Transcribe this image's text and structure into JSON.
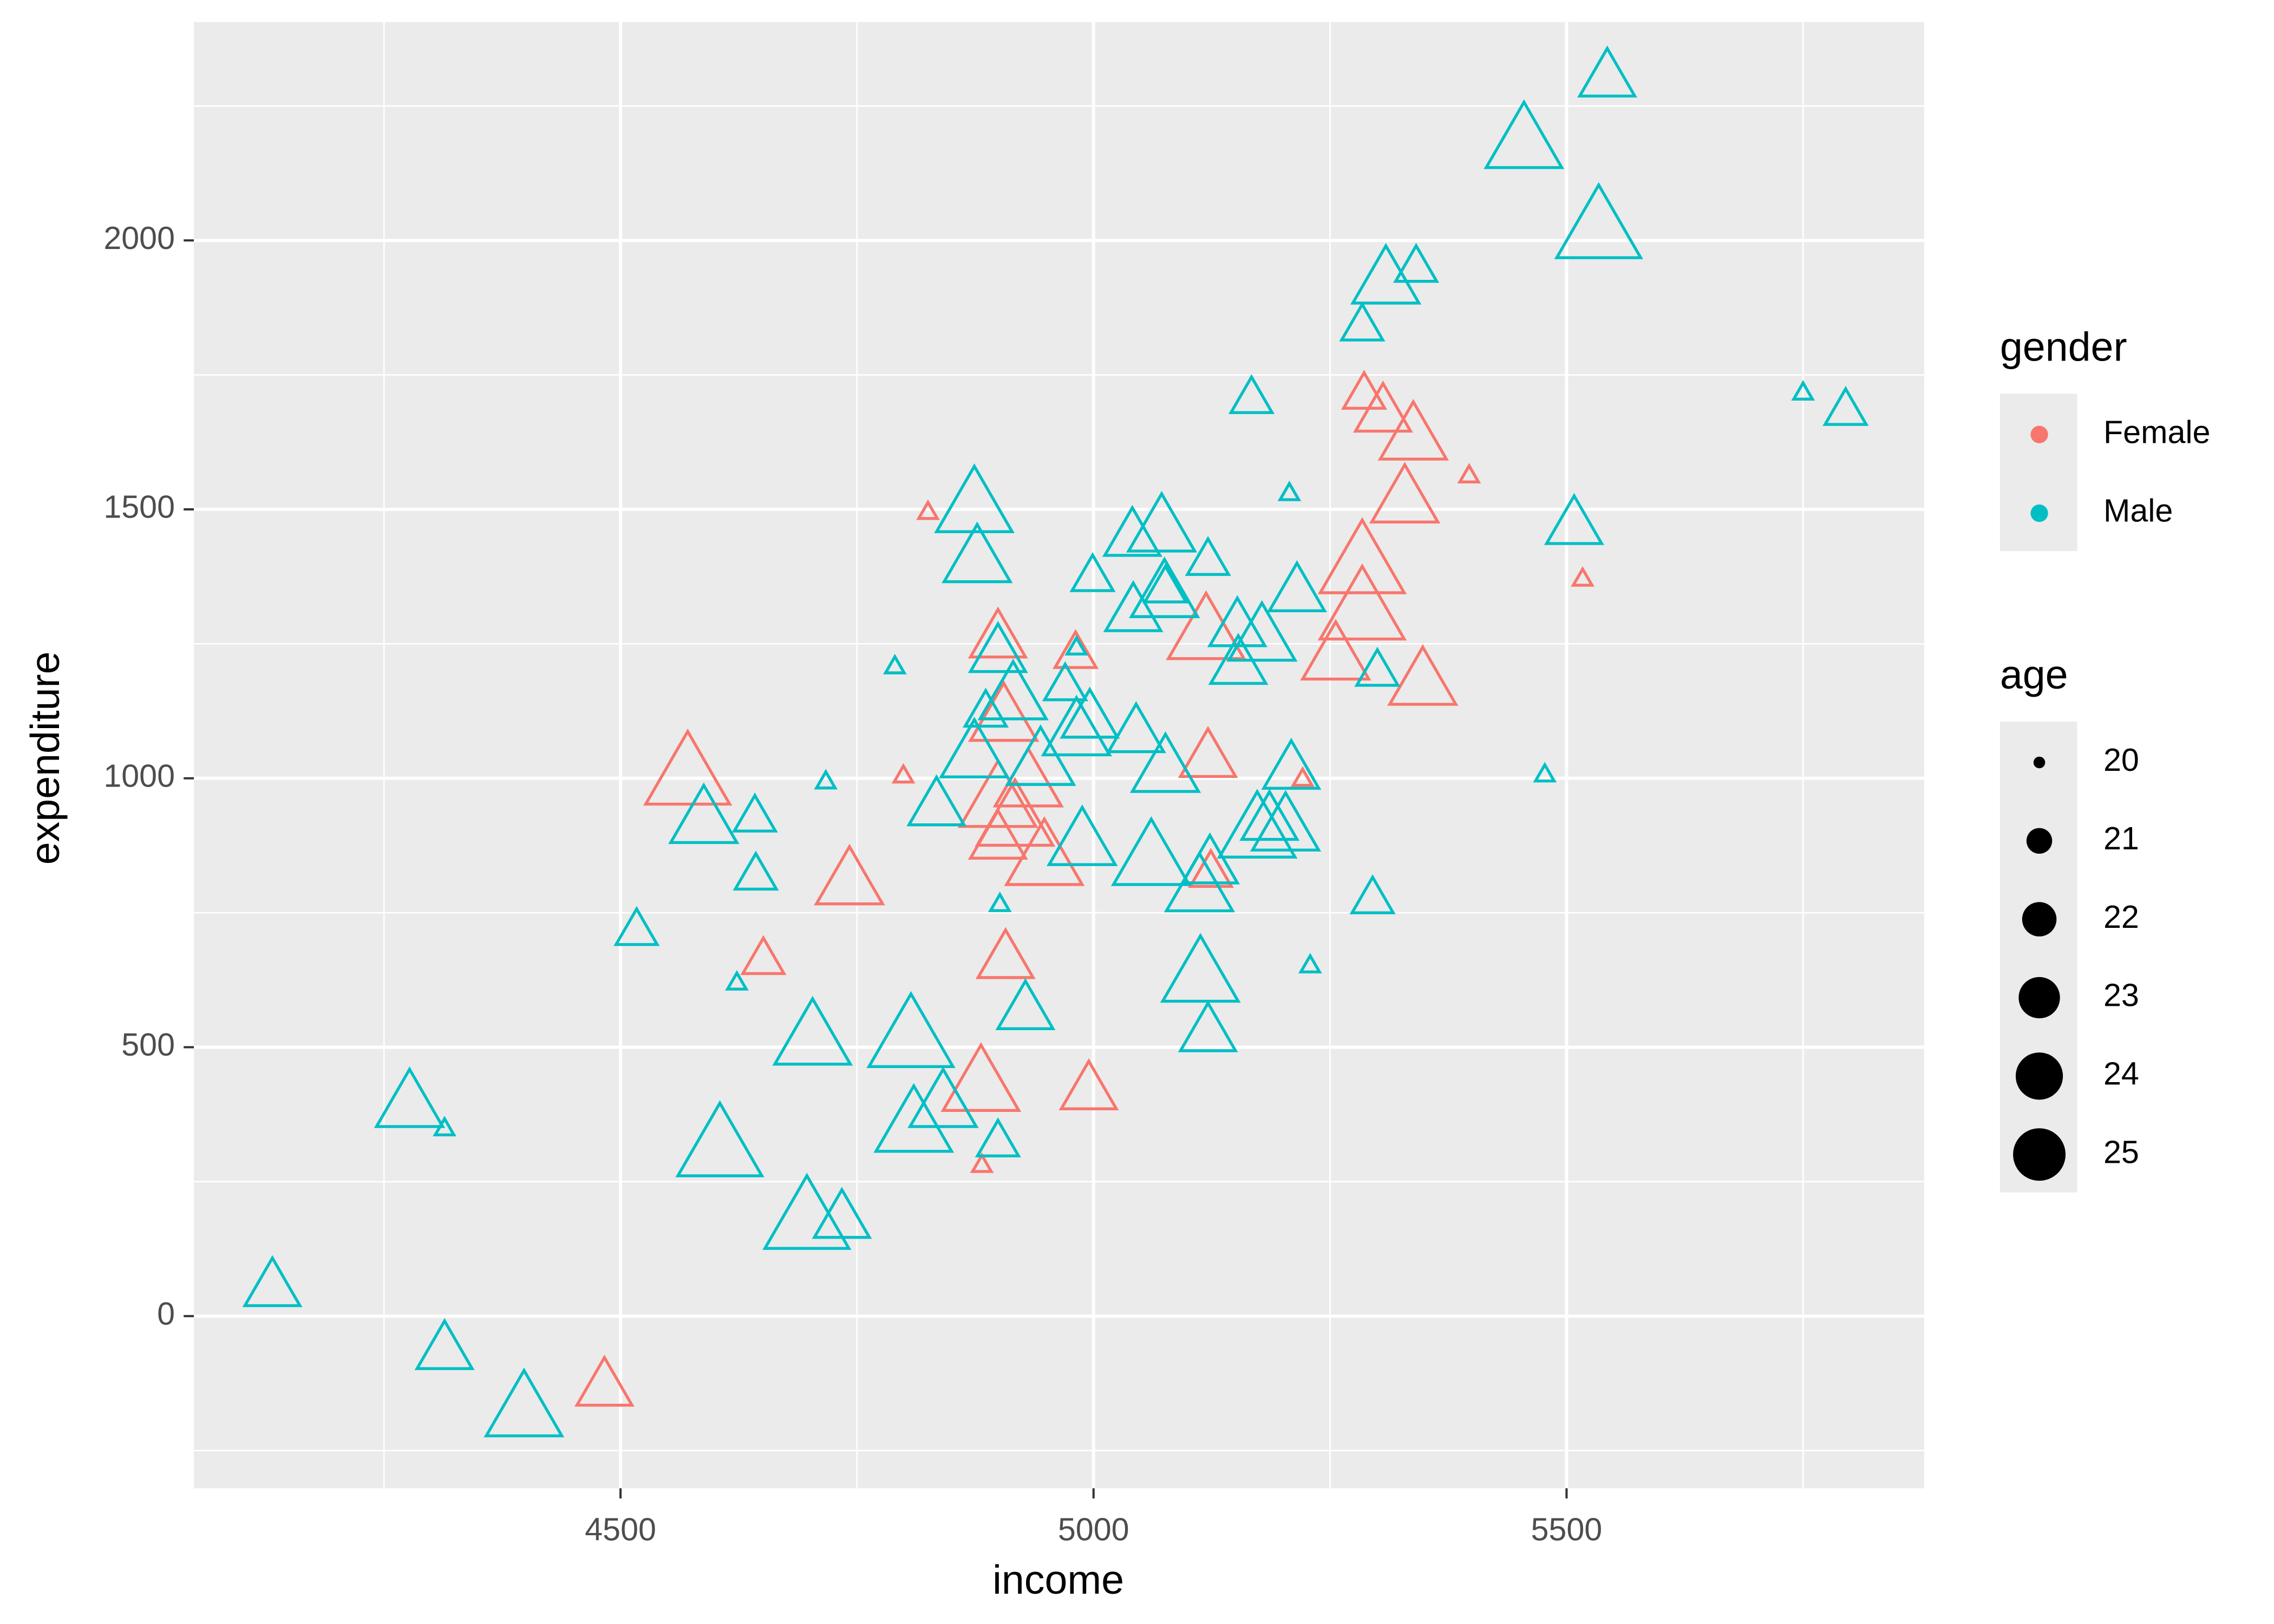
{
  "chart_data": {
    "type": "scatter",
    "x_label": "income",
    "y_label": "expenditure",
    "xlim": [
      4049,
      5878
    ],
    "ylim": [
      -320,
      2406
    ],
    "xticks": [
      4500,
      5000,
      5500
    ],
    "yticks": [
      0,
      500,
      1000,
      1500,
      2000
    ],
    "xminor": [
      4250,
      4750,
      5250,
      5750
    ],
    "yminor": [
      -250,
      250,
      750,
      1250,
      1750,
      2250
    ],
    "grid": true,
    "color_legend_title": "gender",
    "size_legend_title": "age",
    "size_legend_values": [
      20,
      21,
      22,
      23,
      24,
      25
    ],
    "size_range": [
      20,
      25
    ],
    "series": [
      {
        "name": "Female",
        "color": "#F8766D",
        "x": [
          5286,
          5306,
          5338,
          5397,
          4825,
          5329,
          5284,
          5517,
          5284,
          4899,
          5119,
          4981,
          5256,
          5348,
          4905,
          5121,
          4799,
          4571,
          5221,
          4931,
          4899,
          4917,
          4899,
          4948,
          4742,
          5124,
          4651,
          4907,
          4881,
          4995,
          4882,
          4483
        ],
        "values": [
          1710,
          1675,
          1629,
          1561,
          1493,
          1512,
          1390,
          1369,
          1304,
          1255,
          1263,
          1228,
          1220,
          1173,
          1106,
          1033,
          1003,
          997,
          997,
          984,
          951,
          916,
          881,
          843,
          802,
          821,
          659,
          659,
          423,
          415,
          279,
          -136
        ],
        "sizes": [
          21,
          22,
          23,
          20,
          20,
          23,
          25,
          20,
          25,
          22,
          24,
          21,
          23,
          23,
          23,
          22,
          20,
          25,
          20,
          23,
          24,
          24,
          22,
          24,
          23,
          21,
          21,
          22,
          24,
          22,
          20,
          22
        ]
      },
      {
        "name": "Male",
        "color": "#00BFC4",
        "x": [
          5543,
          5455,
          5534,
          5341,
          5309,
          5284,
          5167,
          5750,
          5795,
          5207,
          4874,
          5508,
          5041,
          5072,
          4877,
          5121,
          4999,
          5215,
          5076,
          5042,
          5075,
          5152,
          5178,
          4982,
          4899,
          4790,
          5153,
          5300,
          4970,
          4915,
          4886,
          4996,
          4982,
          5045,
          4717,
          5477,
          4874,
          4944,
          5076,
          5209,
          4834,
          4588,
          4642,
          5186,
          4988,
          5203,
          5061,
          5173,
          5123,
          4643,
          5112,
          5295,
          4901,
          4517,
          5113,
          4623,
          5229,
          4928,
          4703,
          4807,
          5121,
          4277,
          4314,
          4841,
          4810,
          4899,
          4605,
          4734,
          4697,
          4132,
          4314,
          4398
        ],
        "values": [
          2298,
          2176,
          2013,
          1946,
          1919,
          1837,
          1702,
          1715,
          1680,
          1528,
          1499,
          1466,
          1444,
          1458,
          1401,
          1401,
          1371,
          1341,
          1350,
          1304,
          1336,
          1276,
          1255,
          1241,
          1228,
          1206,
          1206,
          1195,
          1168,
          1146,
          1119,
          1106,
          1079,
          1079,
          992,
          1005,
          1038,
          1024,
          1011,
          1011,
          943,
          916,
          924,
          916,
          875,
          902,
          843,
          894,
          835,
          816,
          789,
          772,
          764,
          713,
          626,
          618,
          650,
          564,
          509,
          509,
          523,
          388,
          347,
          388,
          347,
          320,
          306,
          176,
          171,
          49,
          -68,
          -182
        ],
        "sizes": [
          22,
          24,
          25,
          21,
          23,
          21,
          21,
          20,
          21,
          20,
          24,
          22,
          22,
          23,
          23,
          21,
          21,
          22,
          21,
          22,
          23,
          22,
          23,
          20,
          22,
          20,
          22,
          21,
          21,
          23,
          21,
          22,
          23,
          22,
          20,
          20,
          23,
          23,
          23,
          22,
          22,
          23,
          21,
          22,
          23,
          23,
          24,
          24,
          22,
          21,
          23,
          21,
          20,
          21,
          24,
          20,
          20,
          22,
          24,
          25,
          22,
          23,
          20,
          23,
          24,
          21,
          25,
          22,
          25,
          22,
          22,
          24
        ]
      }
    ]
  }
}
